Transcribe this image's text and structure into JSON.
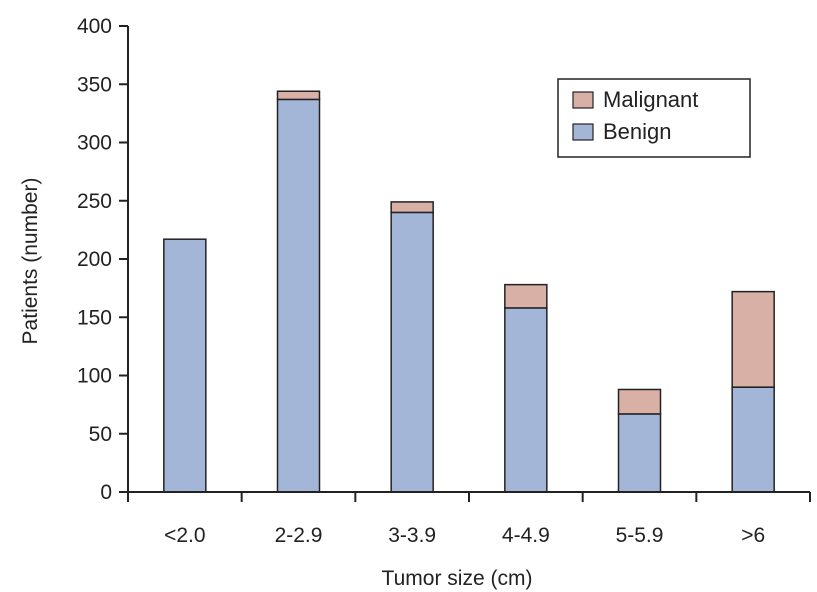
{
  "chart_data": {
    "type": "bar",
    "stacked": true,
    "xlabel": "Tumor size (cm)",
    "ylabel": "Patients (number)",
    "ylim": [
      0,
      400
    ],
    "yticks": [
      0,
      50,
      100,
      150,
      200,
      250,
      300,
      350,
      400
    ],
    "categories": [
      "<2.0",
      "2-2.9",
      "3-3.9",
      "4-4.9",
      "5-5.9",
      ">6"
    ],
    "series": [
      {
        "name": "Benign",
        "values": [
          217,
          337,
          240,
          158,
          67,
          90
        ],
        "color": "#a3b6d8"
      },
      {
        "name": "Malignant",
        "values": [
          0,
          7,
          9,
          20,
          21,
          82
        ],
        "color": "#d8b0a6"
      }
    ],
    "legend": {
      "placement": "top-right",
      "entries": [
        "Malignant",
        "Benign"
      ]
    },
    "grid": false
  }
}
